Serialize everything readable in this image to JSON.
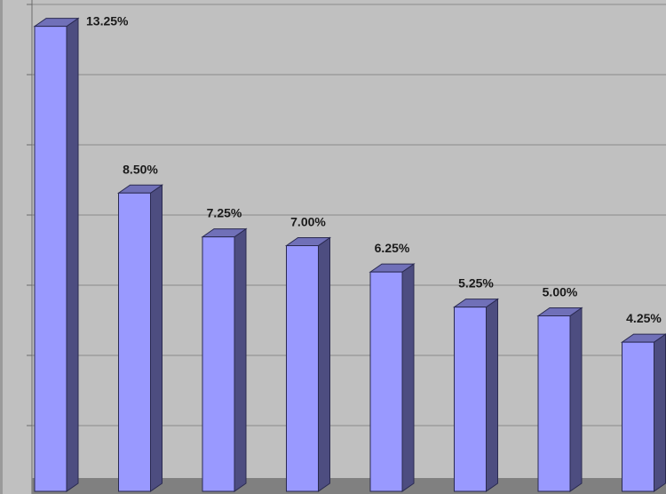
{
  "chart_data": {
    "type": "bar",
    "style": "3d-column",
    "categories": [
      "",
      "",
      "",
      "",
      "",
      "",
      "",
      ""
    ],
    "values": [
      13.25,
      8.5,
      7.25,
      7.0,
      6.25,
      5.25,
      5.0,
      4.25
    ],
    "data_labels": [
      "13.25%",
      "8.50%",
      "7.25%",
      "7.00%",
      "6.25%",
      "5.25%",
      "5.00%",
      "4.25%"
    ],
    "title": "",
    "xlabel": "",
    "ylabel": "",
    "ylim": [
      0,
      14
    ],
    "grid": true,
    "legend": "none",
    "colors": {
      "bar_front": "#9999ff",
      "bar_side": "#4d4d80",
      "bar_top": "#7070b8",
      "plot_background": "#c0c0c0",
      "gridline": "#8a8a8a",
      "floor": "#808080"
    }
  }
}
